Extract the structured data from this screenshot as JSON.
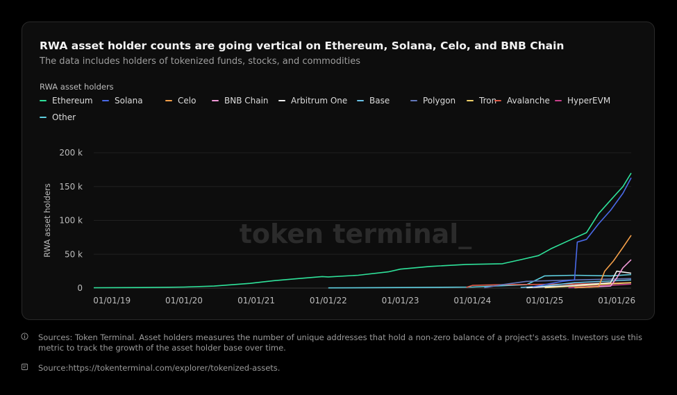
{
  "header": {
    "title": "RWA asset holder counts are going vertical on Ethereum, Solana, Celo, and BNB Chain",
    "subtitle": "The data includes holders of tokenized funds, stocks, and commodities"
  },
  "legend_title": "RWA asset holders",
  "watermark": "token terminal_",
  "footer": {
    "sources_icon": "info-icon",
    "sources_text": "Sources: Token Terminal. Asset holders measures the number of unique addresses that hold a non-zero balance of a project's assets. Investors use this metric to track the growth of the asset holder base over time.",
    "link_icon": "document-icon",
    "link_text": "Source:https://tokenterminal.com/explorer/tokenized-assets."
  },
  "chart_data": {
    "type": "line",
    "title": "RWA asset holder counts are going vertical on Ethereum, Solana, Celo, and BNB Chain",
    "subtitle": "The data includes holders of tokenized funds, stocks, and commodities",
    "ylabel": "RWA asset holders",
    "xlabel": "",
    "ylim": [
      0,
      200000
    ],
    "xlim": [
      "2018-10-01",
      "2026-03-15"
    ],
    "y_ticks": [
      {
        "value": 0,
        "label": "0"
      },
      {
        "value": 50000,
        "label": "50 k"
      },
      {
        "value": 100000,
        "label": "100 k"
      },
      {
        "value": 150000,
        "label": "150 k"
      },
      {
        "value": 200000,
        "label": "200 k"
      }
    ],
    "x_ticks": [
      {
        "value": "2019-01-01",
        "label": "01/01/19"
      },
      {
        "value": "2020-01-01",
        "label": "01/01/20"
      },
      {
        "value": "2021-01-01",
        "label": "01/01/21"
      },
      {
        "value": "2022-01-01",
        "label": "01/01/22"
      },
      {
        "value": "2023-01-01",
        "label": "01/01/23"
      },
      {
        "value": "2024-01-01",
        "label": "01/01/24"
      },
      {
        "value": "2025-01-01",
        "label": "01/01/25"
      },
      {
        "value": "2026-01-01",
        "label": "01/01/26"
      }
    ],
    "grid": "horizontal",
    "legend_position": "top-left",
    "series": [
      {
        "name": "Ethereum",
        "color": "#2fe39b",
        "points": [
          [
            "2018-10-01",
            500
          ],
          [
            "2019-06-01",
            800
          ],
          [
            "2020-01-01",
            1500
          ],
          [
            "2020-06-01",
            3000
          ],
          [
            "2020-12-01",
            7000
          ],
          [
            "2021-04-01",
            11000
          ],
          [
            "2021-08-01",
            14000
          ],
          [
            "2021-12-01",
            17000
          ],
          [
            "2022-01-01",
            16500
          ],
          [
            "2022-06-01",
            19000
          ],
          [
            "2022-11-01",
            24000
          ],
          [
            "2023-01-01",
            28000
          ],
          [
            "2023-06-01",
            32000
          ],
          [
            "2023-12-01",
            35000
          ],
          [
            "2024-06-01",
            36000
          ],
          [
            "2024-09-01",
            42000
          ],
          [
            "2024-12-01",
            48000
          ],
          [
            "2025-02-01",
            58000
          ],
          [
            "2025-05-01",
            70000
          ],
          [
            "2025-08-01",
            82000
          ],
          [
            "2025-10-01",
            110000
          ],
          [
            "2025-12-01",
            130000
          ],
          [
            "2026-02-01",
            150000
          ],
          [
            "2026-03-15",
            170000
          ]
        ]
      },
      {
        "name": "Solana",
        "color": "#4a6ae8",
        "points": [
          [
            "2024-11-01",
            2000
          ],
          [
            "2025-04-01",
            10000
          ],
          [
            "2025-06-01",
            12000
          ],
          [
            "2025-06-15",
            68000
          ],
          [
            "2025-08-01",
            72000
          ],
          [
            "2025-10-01",
            95000
          ],
          [
            "2025-12-01",
            115000
          ],
          [
            "2026-02-01",
            140000
          ],
          [
            "2026-03-15",
            163000
          ]
        ]
      },
      {
        "name": "Celo",
        "color": "#f4a04a",
        "points": [
          [
            "2025-06-01",
            500
          ],
          [
            "2025-10-01",
            2000
          ],
          [
            "2025-11-01",
            25000
          ],
          [
            "2025-12-15",
            40000
          ],
          [
            "2026-02-01",
            60000
          ],
          [
            "2026-03-15",
            78000
          ]
        ]
      },
      {
        "name": "BNB Chain",
        "color": "#f29ad9",
        "points": [
          [
            "2025-06-01",
            500
          ],
          [
            "2025-12-01",
            3000
          ],
          [
            "2026-01-01",
            15000
          ],
          [
            "2026-02-01",
            30000
          ],
          [
            "2026-03-15",
            42000
          ]
        ]
      },
      {
        "name": "Arbitrum One",
        "color": "#f0f0f0",
        "points": [
          [
            "2024-10-01",
            500
          ],
          [
            "2025-06-01",
            4000
          ],
          [
            "2025-12-01",
            8000
          ],
          [
            "2026-01-01",
            25000
          ],
          [
            "2026-03-15",
            22000
          ]
        ]
      },
      {
        "name": "Base",
        "color": "#6cc3e8",
        "points": [
          [
            "2024-09-01",
            1000
          ],
          [
            "2025-01-01",
            3000
          ],
          [
            "2025-06-01",
            8000
          ],
          [
            "2026-03-15",
            12000
          ]
        ]
      },
      {
        "name": "Polygon",
        "color": "#6479bd",
        "points": [
          [
            "2024-03-01",
            500
          ],
          [
            "2024-06-01",
            5000
          ],
          [
            "2024-10-01",
            10000
          ],
          [
            "2025-06-01",
            12000
          ],
          [
            "2026-03-15",
            14000
          ]
        ]
      },
      {
        "name": "Tron",
        "color": "#f2d36b",
        "points": [
          [
            "2025-01-01",
            500
          ],
          [
            "2025-06-01",
            3000
          ],
          [
            "2026-03-15",
            8000
          ]
        ]
      },
      {
        "name": "Avalanche",
        "color": "#e05a48",
        "points": [
          [
            "2023-12-01",
            1000
          ],
          [
            "2024-01-01",
            4000
          ],
          [
            "2024-06-01",
            5000
          ],
          [
            "2025-06-01",
            6000
          ],
          [
            "2026-03-15",
            8000
          ]
        ]
      },
      {
        "name": "HyperEVM",
        "color": "#c9418c",
        "points": [
          [
            "2025-05-01",
            500
          ],
          [
            "2025-10-01",
            3000
          ],
          [
            "2026-03-15",
            6000
          ]
        ]
      },
      {
        "name": "Other",
        "color": "#5fcfe0",
        "points": [
          [
            "2022-01-01",
            300
          ],
          [
            "2023-01-01",
            800
          ],
          [
            "2024-01-01",
            1500
          ],
          [
            "2024-10-01",
            5000
          ],
          [
            "2025-01-01",
            18000
          ],
          [
            "2025-06-01",
            19000
          ],
          [
            "2025-12-01",
            18000
          ],
          [
            "2026-03-15",
            20000
          ]
        ]
      }
    ]
  }
}
